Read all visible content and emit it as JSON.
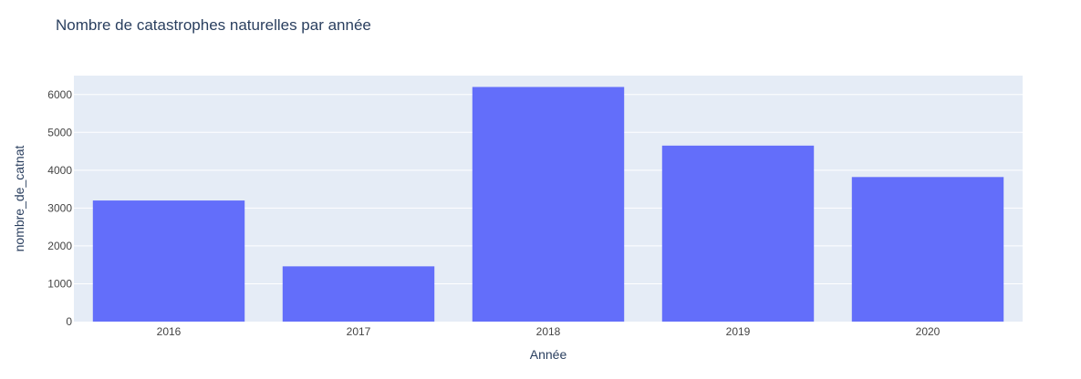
{
  "chart_data": {
    "type": "bar",
    "title": "Nombre de catastrophes naturelles par année",
    "xlabel": "Année",
    "ylabel": "nombre_de_catnat",
    "categories": [
      "2016",
      "2017",
      "2018",
      "2019",
      "2020"
    ],
    "values": [
      3200,
      1460,
      6200,
      4650,
      3820
    ],
    "ylim": [
      0,
      6500
    ],
    "yticks": [
      0,
      1000,
      2000,
      3000,
      4000,
      5000,
      6000
    ],
    "grid": true,
    "legend": "none",
    "colors": {
      "bar": "#636efa",
      "plot_background": "#e5ecf6",
      "gridline": "#ffffff",
      "text": "#2a3f5f",
      "tick_text": "#444444"
    }
  }
}
